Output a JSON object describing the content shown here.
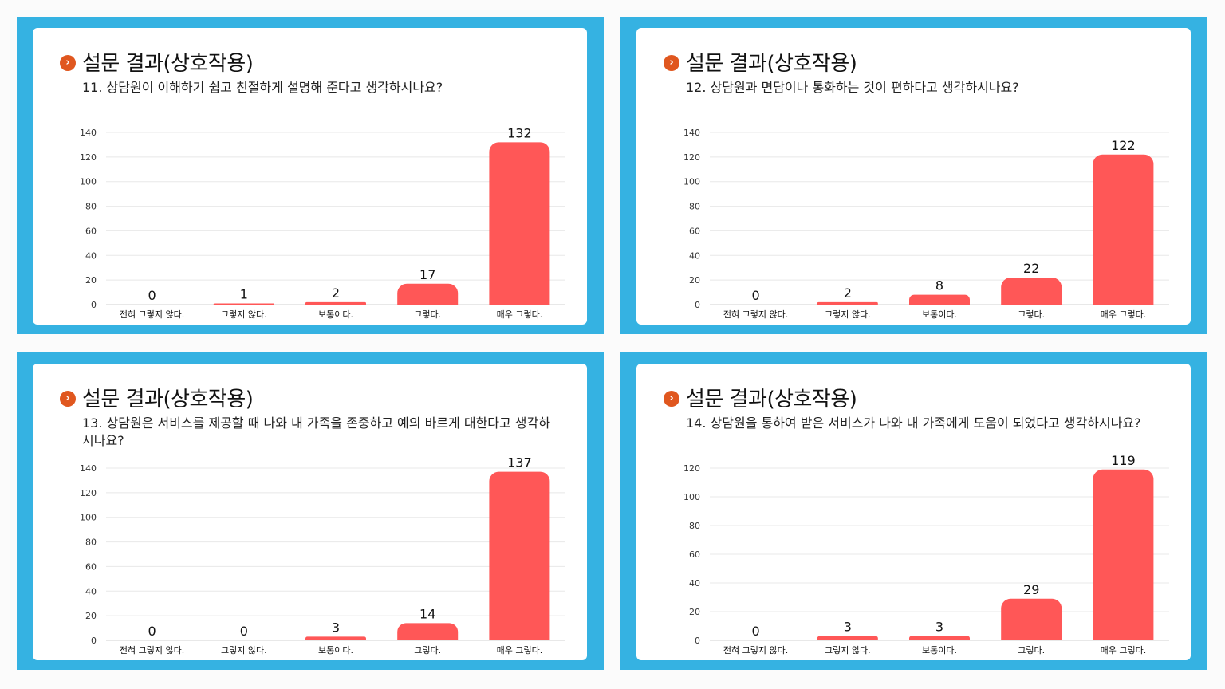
{
  "common": {
    "bullet_glyph": "›",
    "colors": {
      "frame": "#35b2e2",
      "bar": "#ff5757",
      "bullet": "#e0571f",
      "card": "#ffffff"
    }
  },
  "panels": [
    {
      "title": "설문 결과(상호작용)",
      "question": "11. 상담원이 이해하기 쉽고 친절하게 설명해 준다고 생각하시나요?",
      "chart_data": {
        "type": "bar",
        "categories": [
          "전혀 그렇지 않다.",
          "그렇지 않다.",
          "보통이다.",
          "그렇다.",
          "매우 그렇다."
        ],
        "values": [
          0,
          1,
          2,
          17,
          132
        ],
        "ylim": [
          0,
          140
        ],
        "yticks": [
          0,
          20,
          40,
          60,
          80,
          100,
          120,
          140
        ],
        "grid": true
      }
    },
    {
      "title": "설문 결과(상호작용)",
      "question": "12. 상담원과 면담이나 통화하는 것이 편하다고 생각하시나요?",
      "chart_data": {
        "type": "bar",
        "categories": [
          "전혀 그렇지 않다.",
          "그렇지 않다.",
          "보통이다.",
          "그렇다.",
          "매우 그렇다."
        ],
        "values": [
          0,
          2,
          8,
          22,
          122
        ],
        "ylim": [
          0,
          140
        ],
        "yticks": [
          0,
          20,
          40,
          60,
          80,
          100,
          120,
          140
        ],
        "grid": true
      }
    },
    {
      "title": "설문 결과(상호작용)",
      "question": "13. 상담원은 서비스를 제공할 때 나와 내 가족을 존중하고 예의 바르게 대한다고 생각하시나요?",
      "chart_data": {
        "type": "bar",
        "categories": [
          "전혀 그렇지 않다.",
          "그렇지 않다.",
          "보통이다.",
          "그렇다.",
          "매우 그렇다."
        ],
        "values": [
          0,
          0,
          3,
          14,
          137
        ],
        "ylim": [
          0,
          140
        ],
        "yticks": [
          0,
          20,
          40,
          60,
          80,
          100,
          120,
          140
        ],
        "grid": true
      }
    },
    {
      "title": "설문 결과(상호작용)",
      "question": "14. 상담원을 통하여 받은 서비스가 나와 내 가족에게 도움이 되었다고 생각하시나요?",
      "chart_data": {
        "type": "bar",
        "categories": [
          "전혀 그렇지 않다.",
          "그렇지 않다.",
          "보통이다.",
          "그렇다.",
          "매우 그렇다."
        ],
        "values": [
          0,
          3,
          3,
          29,
          119
        ],
        "ylim": [
          0,
          120
        ],
        "yticks": [
          0,
          20,
          40,
          60,
          80,
          100,
          120
        ],
        "grid": true
      }
    }
  ]
}
